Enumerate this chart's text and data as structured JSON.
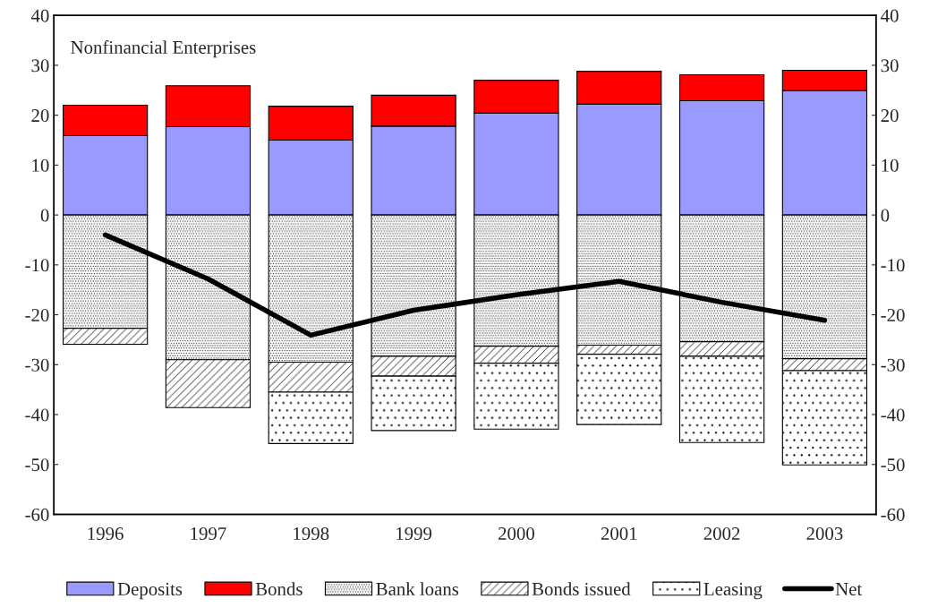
{
  "chart_data": {
    "type": "bar",
    "title": "Nonfinancial Enterprises",
    "stacked": true,
    "categories": [
      "1996",
      "1997",
      "1998",
      "1999",
      "2000",
      "2001",
      "2002",
      "2003"
    ],
    "series": [
      {
        "name": "Deposits",
        "color": "#9999ff",
        "values": [
          15.9,
          17.7,
          15.0,
          17.8,
          20.4,
          22.2,
          22.9,
          24.9
        ]
      },
      {
        "name": "Bonds",
        "color": "#ff0000",
        "values": [
          6.1,
          8.2,
          6.8,
          6.2,
          6.6,
          6.6,
          5.2,
          4.1
        ]
      },
      {
        "name": "Bank loans",
        "color": "#000000",
        "values": [
          -22.7,
          -29.0,
          -29.5,
          -28.3,
          -26.3,
          -26.1,
          -25.4,
          -28.8
        ]
      },
      {
        "name": "Bonds issued",
        "color": "#000000",
        "values": [
          -3.2,
          -9.6,
          -6.0,
          -4.0,
          -3.4,
          -1.8,
          -2.9,
          -2.4
        ]
      },
      {
        "name": "Leasing",
        "color": "#000000",
        "values": [
          null,
          null,
          -10.3,
          -10.9,
          -13.2,
          -14.1,
          -17.3,
          -18.9
        ]
      },
      {
        "name": "Net",
        "type": "line",
        "color": "#000000",
        "values": [
          -4.0,
          -12.8,
          -24.1,
          -19.1,
          -16.0,
          -13.3,
          -17.5,
          -21.1
        ]
      }
    ],
    "ylim": [
      -60,
      40
    ],
    "yticks": [
      -60,
      -50,
      -40,
      -30,
      -20,
      -10,
      0,
      10,
      20,
      30,
      40
    ],
    "y2lim": [
      -60,
      40
    ],
    "y2ticks": [
      -60,
      -50,
      -40,
      -30,
      -20,
      -10,
      0,
      10,
      20,
      30,
      40
    ],
    "grid": false,
    "legend": "bottom",
    "marker": "none",
    "line_style": "solid"
  }
}
